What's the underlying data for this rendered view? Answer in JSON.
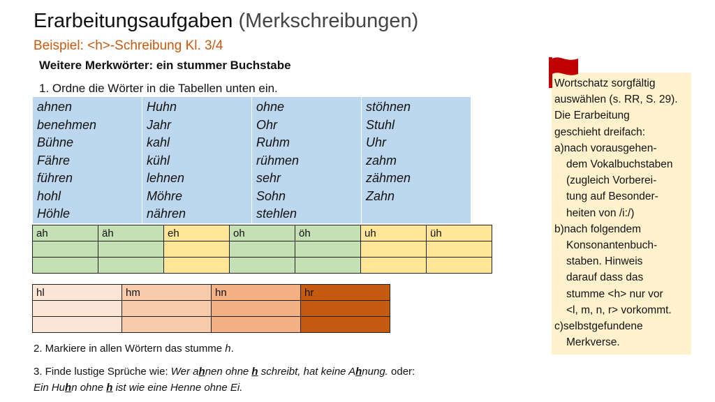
{
  "title": {
    "main": "Erarbeitungsaufgaben",
    "paren": " (Merkschreibungen)"
  },
  "subtitle": "Beispiel: <h>-Schreibung Kl. 3/4",
  "heading": "Weitere Merkwörter: ein stummer Buchstabe",
  "task1": "1. Ordne die Wörter in die Tabellen unten ein.",
  "word_columns": [
    [
      "ahnen",
      "benehmen",
      "Bühne",
      "Fähre",
      "führen",
      "hohl",
      "Höhle"
    ],
    [
      "Huhn",
      "Jahr",
      "kahl",
      "kühl",
      "lehnen",
      "Möhre",
      "nähren"
    ],
    [
      "ohne",
      "Ohr",
      "Ruhm",
      "rühmen",
      "sehr",
      "Sohn",
      "stehlen"
    ],
    [
      "stöhnen",
      "Stuhl",
      "Uhr",
      "zahm",
      "zähmen",
      "Zahn"
    ]
  ],
  "table1": {
    "headers": [
      "ah",
      "äh",
      "eh",
      "oh",
      "öh",
      "uh",
      "üh"
    ],
    "empty_rows": 2,
    "colors": [
      "#c5e0b4",
      "#c5e0b4",
      "#ffe699",
      "#c5e0b4",
      "#c5e0b4",
      "#ffe699",
      "#ffe699"
    ]
  },
  "table2": {
    "headers": [
      "hl",
      "hm",
      "hn",
      "hr"
    ],
    "empty_rows": 2,
    "colors": [
      "#fbe5d6",
      "#f8cbad",
      "#f4b183",
      "#c55a11"
    ]
  },
  "task2": {
    "text": "2. Markiere in allen Wörtern das stumme ",
    "letter": "h",
    "end": "."
  },
  "task3": {
    "l1_a": "3. Finde lustige Sprüche wie: ",
    "l1_i1": "Wer a",
    "l1_h1": "h",
    "l1_i2": "nen ohne ",
    "l1_h2": "h",
    "l1_i3": " schreibt, hat keine A",
    "l1_h3": "h",
    "l1_i4": "nung.",
    "l1_b": " oder:",
    "l2_i1": "Ein Hu",
    "l2_h1": "h",
    "l2_i2": "n ohne ",
    "l2_h2": "h",
    "l2_i3": " ist wie eine Henne ohne Ei."
  },
  "note": {
    "lines": [
      {
        "t": "Wortschatz sorgfältig",
        "indent": false
      },
      {
        "t": "auswählen (s. RR, S. 29).",
        "indent": false
      },
      {
        "t": "Die Erarbeitung",
        "indent": false
      },
      {
        "t": "geschieht dreifach:",
        "indent": false
      },
      {
        "t": "a)nach vorausgehen-",
        "indent": false
      },
      {
        "t": "dem Vokalbuchstaben",
        "indent": true
      },
      {
        "t": "(zugleich Vorberei-",
        "indent": true
      },
      {
        "t": "tung auf Besonder-",
        "indent": true
      },
      {
        "t": "heiten von  /i:/)",
        "indent": true
      },
      {
        "t": "b)nach folgendem",
        "indent": false
      },
      {
        "t": "Konsonantenbuch-",
        "indent": true
      },
      {
        "t": "staben. Hinweis",
        "indent": true
      },
      {
        "t": "darauf dass das",
        "indent": true
      },
      {
        "t": "stumme <h> nur vor",
        "indent": true
      },
      {
        "t": "<l, m, n, r> vorkommt.",
        "indent": true
      },
      {
        "t": "c)selbstgefundene",
        "indent": false
      },
      {
        "t": "Merkverse.",
        "indent": true
      }
    ]
  },
  "flag_icon": "red-flag-icon",
  "colors": {
    "accent": "#c55a11",
    "word_bg": "#bdd7ee",
    "note_bg": "#fff2cc",
    "flag": "#c00000"
  }
}
